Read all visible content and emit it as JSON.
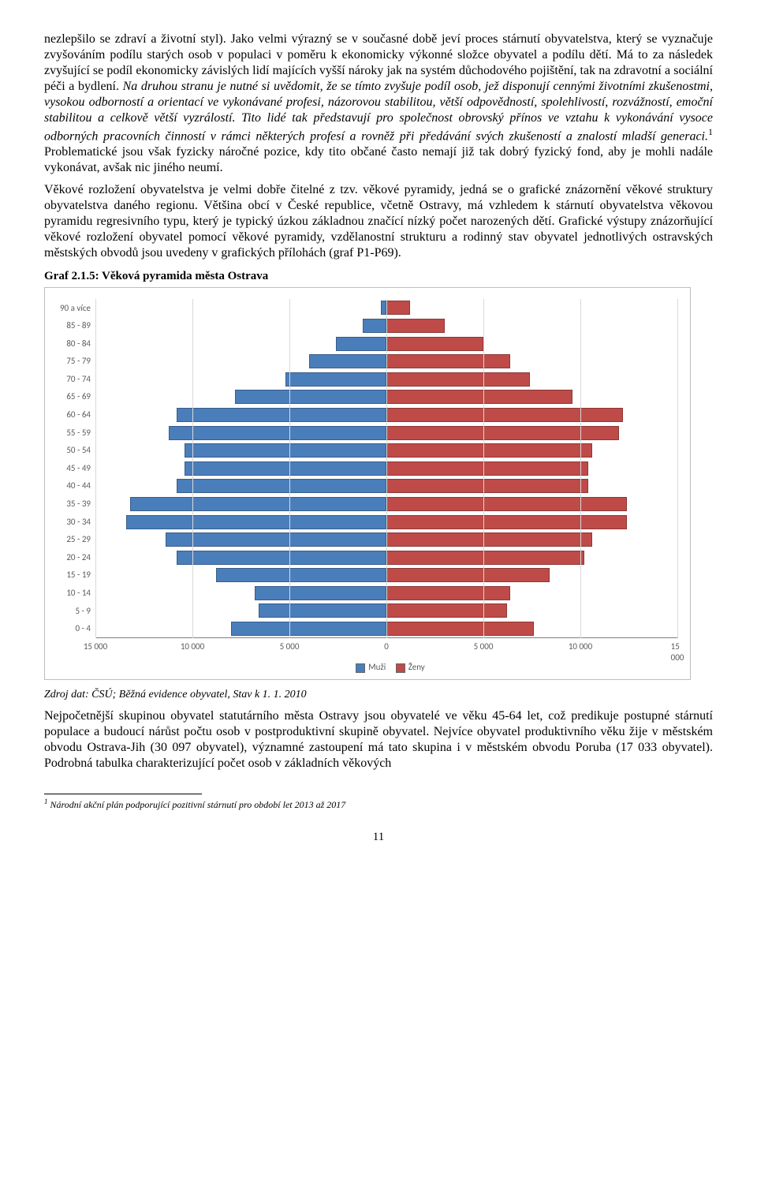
{
  "paragraphs": {
    "p1a": "nezlepšilo se zdraví a životní styl). Jako velmi výrazný se v současné době jeví proces stárnutí obyvatelstva, který se vyznačuje zvyšováním podílu starých osob v populaci v poměru k ekonomicky výkonné složce obyvatel a podílu dětí. Má to za následek zvyšující se podíl ekonomicky závislých lidí majících vyšší nároky jak na systém důchodového pojištění, tak na zdravotní a sociální péči a bydlení. ",
    "p1b_italic": "Na druhou stranu je nutné si uvědomit, že se tímto zvyšuje podíl osob, jež disponují cennými životními zkušenostmi, vysokou odborností a orientací ve vykonávané profesi, názorovou stabilitou, větší odpovědností, spolehlivostí, rozvážností, emoční stabilitou a celkově větší vyzrálostí. Tito lidé tak představují pro společnost obrovský přínos ve vztahu k vykonávání vysoce odborných pracovních činností v rámci některých profesí a rovněž při předávání svých zkušeností a znalostí mladší generaci.",
    "p1c_sup": "1",
    "p1d": " Problematické jsou však fyzicky náročné pozice, kdy tito občané často nemají již tak dobrý fyzický fond, aby je mohli nadále vykonávat, avšak nic jiného neumí.",
    "p2": "Věkové rozložení obyvatelstva je velmi dobře čitelné z tzv. věkové pyramidy, jedná se o grafické znázornění věkové struktury obyvatelstva daného regionu. Většina obcí v České republice, včetně Ostravy, má vzhledem k stárnutí obyvatelstva věkovou pyramidu regresivního typu, který je typický úzkou základnou značící nízký počet narozených dětí. Grafické výstupy znázorňující věkové rozložení obyvatel pomocí věkové pyramidy, vzdělanostní strukturu a rodinný stav obyvatel jednotlivých ostravských městských obvodů jsou uvedeny v grafických přílohách (graf P1-P69).",
    "p3": "Nejpočetnější skupinou obyvatel statutárního města Ostravy jsou obyvatelé ve věku 45-64 let, což predikuje postupné stárnutí populace a budoucí nárůst počtu osob v postproduktivní skupině obyvatel. Nejvíce obyvatel produktivního věku žije v městském obvodu Ostrava-Jih (30 097 obyvatel), významné zastoupení má tato skupina i v městském obvodu Poruba (17 033 obyvatel). Podrobná tabulka charakterizující počet osob v základních věkových"
  },
  "graf_title": "Graf 2.1.5: Věková pyramida města Ostrava",
  "source": "Zdroj dat: ČSÚ; Běžná evidence obyvatel, Stav k 1. 1. 2010",
  "footnote_marker": "1",
  "footnote_text": " Národní akční plán podporující pozitivní stárnutí pro období let 2013 až 2017",
  "page_number": "11",
  "chart": {
    "type": "population-pyramid",
    "x_max": 15000,
    "x_ticks": [
      -15000,
      -10000,
      -5000,
      0,
      5000,
      10000,
      15000
    ],
    "x_tick_labels": [
      "15 000",
      "10 000",
      "5 000",
      "0",
      "5 000",
      "10 000",
      "15 000"
    ],
    "legend_male": "Muži",
    "legend_female": "Ženy",
    "color_male": "#4a7ebb",
    "color_male_border": "#385d8a",
    "color_female": "#be4b48",
    "color_female_border": "#8c3836",
    "grid_color": "#d9d9d9",
    "axis_color": "#808080",
    "label_fontfamily": "Calibri, Arial, sans-serif",
    "label_fontsize": 11,
    "label_color": "#595959",
    "categories": [
      {
        "label": "90 a více",
        "male": 300,
        "female": 1200
      },
      {
        "label": "85 - 89",
        "male": 1200,
        "female": 3000
      },
      {
        "label": "80 - 84",
        "male": 2600,
        "female": 5000
      },
      {
        "label": "75 - 79",
        "male": 4000,
        "female": 6400
      },
      {
        "label": "70 - 74",
        "male": 5200,
        "female": 7400
      },
      {
        "label": "65 - 69",
        "male": 7800,
        "female": 9600
      },
      {
        "label": "60 - 64",
        "male": 10800,
        "female": 12200
      },
      {
        "label": "55 - 59",
        "male": 11200,
        "female": 12000
      },
      {
        "label": "50 - 54",
        "male": 10400,
        "female": 10600
      },
      {
        "label": "45 - 49",
        "male": 10400,
        "female": 10400
      },
      {
        "label": "40 - 44",
        "male": 10800,
        "female": 10400
      },
      {
        "label": "35 - 39",
        "male": 13200,
        "female": 12400
      },
      {
        "label": "30 - 34",
        "male": 13400,
        "female": 12400
      },
      {
        "label": "25 - 29",
        "male": 11400,
        "female": 10600
      },
      {
        "label": "20 - 24",
        "male": 10800,
        "female": 10200
      },
      {
        "label": "15 - 19",
        "male": 8800,
        "female": 8400
      },
      {
        "label": "10 - 14",
        "male": 6800,
        "female": 6400
      },
      {
        "label": "5 - 9",
        "male": 6600,
        "female": 6200
      },
      {
        "label": "0 - 4",
        "male": 8000,
        "female": 7600
      }
    ]
  }
}
